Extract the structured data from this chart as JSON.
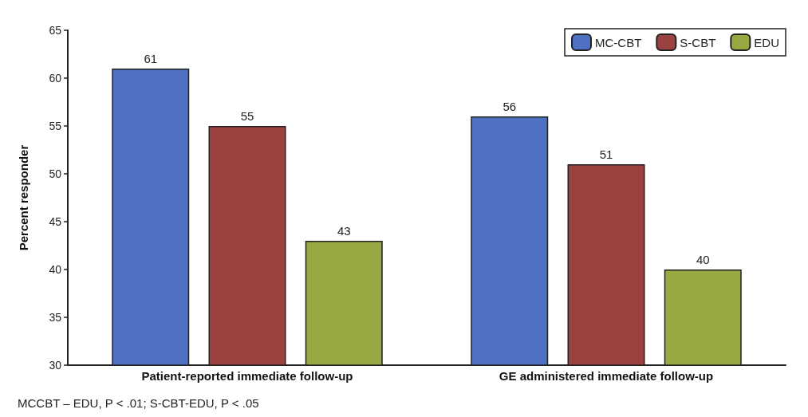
{
  "chart_data": {
    "type": "bar",
    "ylabel": "Percent responder",
    "categories": [
      "Patient-reported immediate follow-up",
      "GE administered immediate follow-up"
    ],
    "series": [
      {
        "name": "MC-CBT",
        "color": "#4f71c2",
        "values": [
          61,
          56
        ]
      },
      {
        "name": "S-CBT",
        "color": "#9b4240",
        "values": [
          55,
          51
        ]
      },
      {
        "name": "EDU",
        "color": "#98a944",
        "values": [
          43,
          40
        ]
      }
    ],
    "ylim": [
      30,
      65
    ],
    "yticks": [
      30,
      35,
      40,
      45,
      50,
      55,
      60,
      65
    ],
    "grid": false,
    "legend": "top right",
    "data_labels": true,
    "annotations": [
      "MCCBT – EDU, P < .01; S-CBT-EDU, P < .05"
    ]
  }
}
